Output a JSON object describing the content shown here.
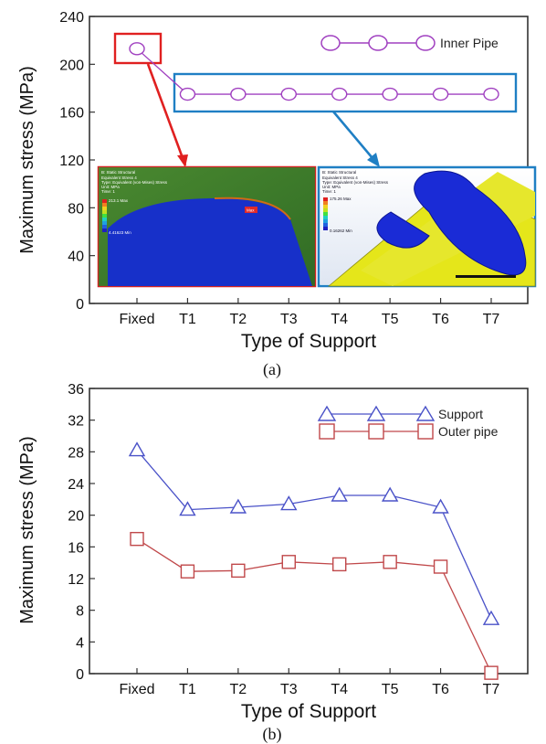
{
  "chart_data": [
    {
      "type": "line",
      "panel_label": "(a)",
      "xlabel": "Type of Support",
      "ylabel": "Maximum stress (MPa)",
      "categories": [
        "Fixed",
        "T1",
        "T2",
        "T3",
        "T4",
        "T5",
        "T6",
        "T7"
      ],
      "yticks": [
        "0",
        "40",
        "80",
        "120",
        "160",
        "200",
        "240"
      ],
      "ylim": [
        0,
        240
      ],
      "series": [
        {
          "name": "Inner Pipe",
          "color": "#a040c0",
          "marker": "circle",
          "values": [
            213,
            175,
            175,
            175,
            175,
            175,
            175,
            175
          ]
        }
      ],
      "legend": "top-right",
      "highlight_colors": {
        "fixed_box": "#e02020",
        "t_box": "#1f7fc4"
      },
      "insets": [
        {
          "title": "B: Static Structural",
          "lines": [
            "Equivalent Stress 4",
            "Type: Equivalent (von-Mises) Stress",
            "Unit: MPa",
            "Time: 1"
          ],
          "max_label": "213.1 Max",
          "min_label": "4.41623 Min",
          "marker": "Max"
        },
        {
          "title": "B: Static Structural",
          "lines": [
            "Equivalent Stress 4",
            "Type: Equivalent (von-Mises) Stress",
            "Unit: MPa",
            "Time: 1"
          ],
          "max_label": "175.26 Max",
          "min_label": "0.16262 Min",
          "marker": ""
        }
      ]
    },
    {
      "type": "line",
      "panel_label": "(b)",
      "xlabel": "Type of Support",
      "ylabel": "Maximum stress (MPa)",
      "categories": [
        "Fixed",
        "T1",
        "T2",
        "T3",
        "T4",
        "T5",
        "T6",
        "T7"
      ],
      "yticks": [
        "0",
        "4",
        "8",
        "12",
        "16",
        "20",
        "24",
        "28",
        "32",
        "36"
      ],
      "ylim": [
        0,
        36
      ],
      "series": [
        {
          "name": "Support",
          "color": "#4a52c8",
          "marker": "triangle",
          "values": [
            28.2,
            20.7,
            21.0,
            21.4,
            22.5,
            22.5,
            21.0,
            6.9
          ]
        },
        {
          "name": "Outer pipe",
          "color": "#c0484a",
          "marker": "square",
          "values": [
            17.0,
            12.9,
            13.0,
            14.1,
            13.8,
            14.1,
            13.5,
            0.1
          ]
        }
      ],
      "legend": "top-right"
    }
  ]
}
